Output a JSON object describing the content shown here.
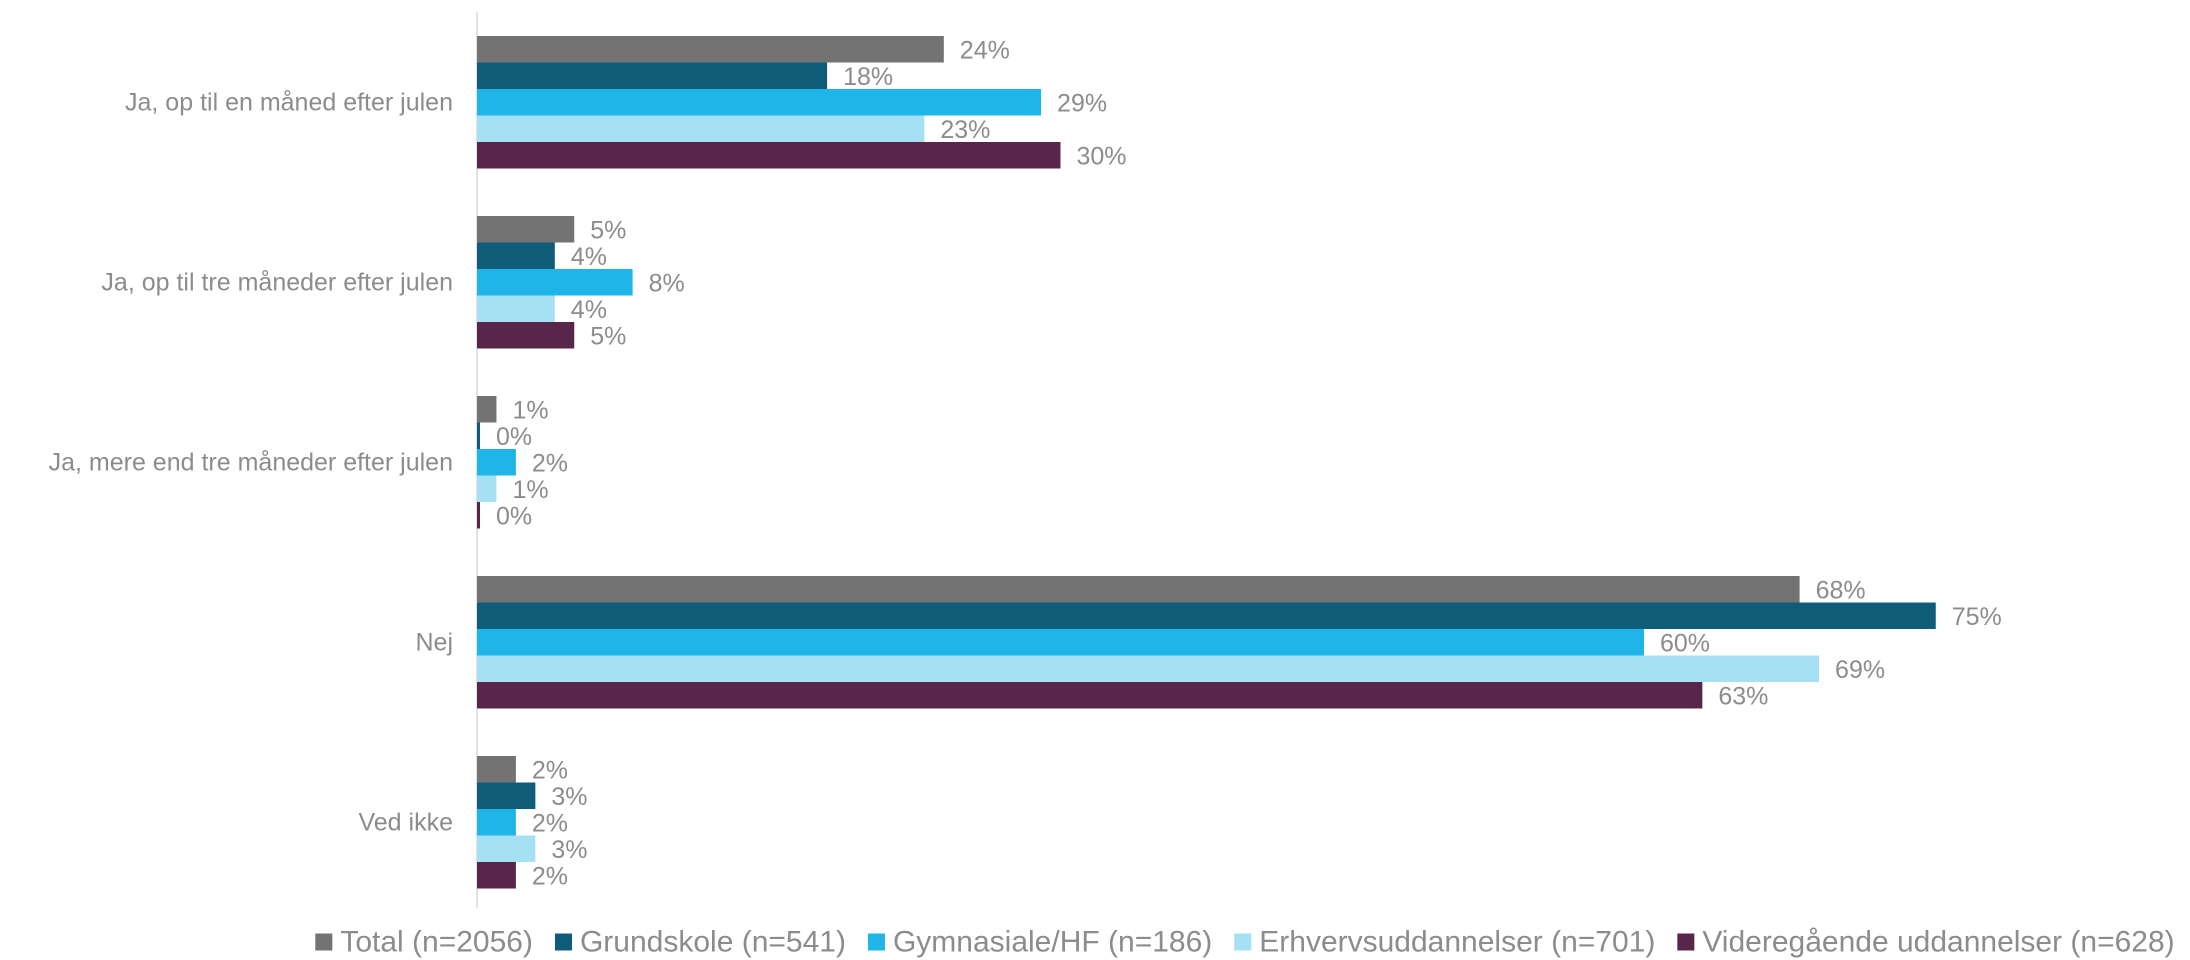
{
  "chart_data": {
    "type": "bar",
    "orientation": "horizontal",
    "categories": [
      "Ja, op til en måned efter julen",
      "Ja, op til tre måneder efter julen",
      "Ja, mere end tre måneder efter julen",
      "Nej",
      "Ved ikke"
    ],
    "series": [
      {
        "name": "Total (n=2056)",
        "color": "#737373",
        "values": [
          24,
          5,
          1,
          68,
          2
        ]
      },
      {
        "name": "Grundskole (n=541)",
        "color": "#0e5c78",
        "values": [
          18,
          4,
          0,
          75,
          3
        ]
      },
      {
        "name": "Gymnasiale/HF (n=186)",
        "color": "#1fb5e8",
        "values": [
          29,
          8,
          2,
          60,
          2
        ]
      },
      {
        "name": "Erhvervsuddannelser (n=701)",
        "color": "#a6e0f5",
        "values": [
          23,
          4,
          1,
          69,
          3
        ]
      },
      {
        "name": "Videregående uddannelser (n=628)",
        "color": "#58264b",
        "values": [
          30,
          5,
          0,
          63,
          2
        ]
      }
    ],
    "value_suffix": "%",
    "xlim": [
      0,
      78
    ],
    "legend_position": "bottom",
    "grid": false
  }
}
